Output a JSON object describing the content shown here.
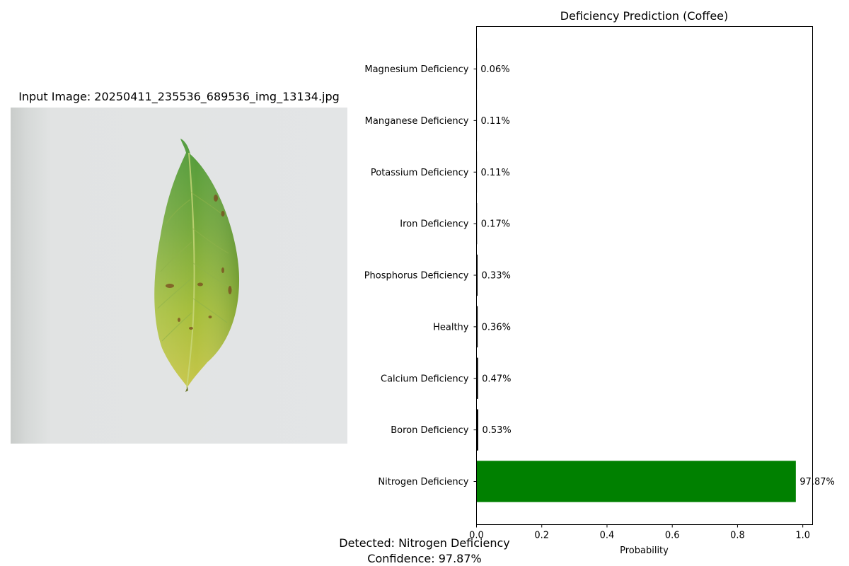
{
  "image_panel": {
    "title": "Input Image: 20250411_235536_689536_img_13134.jpg",
    "image_icon": "leaf-photo"
  },
  "chart_data": {
    "type": "bar",
    "orientation": "horizontal",
    "title": "Deficiency Prediction (Coffee)",
    "xlabel": "Probability",
    "ylabel": "",
    "xlim": [
      0,
      1.03
    ],
    "xticks": [
      0,
      0.2,
      0.4,
      0.6,
      0.8,
      1.0
    ],
    "xtick_labels": [
      "0.0",
      "0.2",
      "0.4",
      "0.6",
      "0.8",
      "1.0"
    ],
    "grid": false,
    "categories": [
      "Nitrogen Deficiency",
      "Boron Deficiency",
      "Calcium Deficiency",
      "Healthy",
      "Phosphorus Deficiency",
      "Iron Deficiency",
      "Potassium Deficiency",
      "Manganese Deficiency",
      "Magnesium Deficiency"
    ],
    "values": [
      0.9787,
      0.0053,
      0.0047,
      0.0036,
      0.0033,
      0.0017,
      0.0011,
      0.0011,
      0.0006
    ],
    "value_labels": [
      "97.87%",
      "0.53%",
      "0.47%",
      "0.36%",
      "0.33%",
      "0.17%",
      "0.11%",
      "0.11%",
      "0.06%"
    ],
    "highlight_color": "#008000",
    "bar_color": "#000000"
  },
  "result": {
    "detected": "Detected: Nitrogen Deficiency",
    "confidence": "Confidence: 97.87%"
  }
}
